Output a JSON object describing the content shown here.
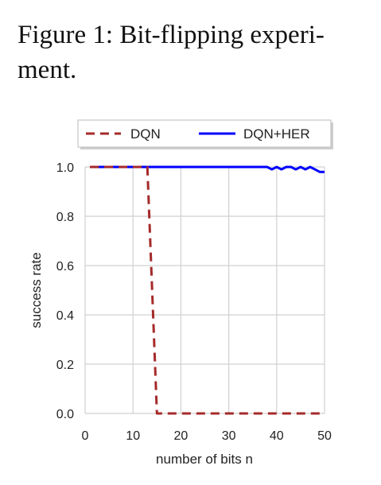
{
  "caption": {
    "line1": "Figure 1: Bit-flipping experi-",
    "line2": "ment."
  },
  "chart_data": {
    "type": "line",
    "xlabel": "number of bits n",
    "ylabel": "success rate",
    "xlim": [
      0,
      50
    ],
    "ylim": [
      0,
      1.0
    ],
    "xticks": [
      "0",
      "10",
      "20",
      "30",
      "40",
      "50"
    ],
    "yticks": [
      "0.0",
      "0.2",
      "0.4",
      "0.6",
      "0.8",
      "1.0"
    ],
    "grid": true,
    "legend_position": "top",
    "series": [
      {
        "name": "DQN",
        "color": "#a52a2a",
        "style": "dashed",
        "x": [
          1,
          5,
          10,
          12,
          13,
          15,
          20,
          25,
          30,
          35,
          40,
          45,
          50
        ],
        "y": [
          1.0,
          1.0,
          1.0,
          1.0,
          1.0,
          0.0,
          0.0,
          0.0,
          0.0,
          0.0,
          0.0,
          0.0,
          0.0
        ]
      },
      {
        "name": "DQN+HER",
        "color": "#0000ff",
        "style": "solid",
        "x": [
          1,
          5,
          10,
          15,
          20,
          25,
          30,
          35,
          38,
          39,
          40,
          41,
          42,
          43,
          44,
          45,
          46,
          47,
          48,
          49,
          50
        ],
        "y": [
          1.0,
          1.0,
          1.0,
          1.0,
          1.0,
          1.0,
          1.0,
          1.0,
          1.0,
          0.99,
          1.0,
          0.99,
          1.0,
          1.0,
          0.99,
          1.0,
          0.99,
          1.0,
          0.99,
          0.98,
          0.98
        ]
      }
    ]
  }
}
